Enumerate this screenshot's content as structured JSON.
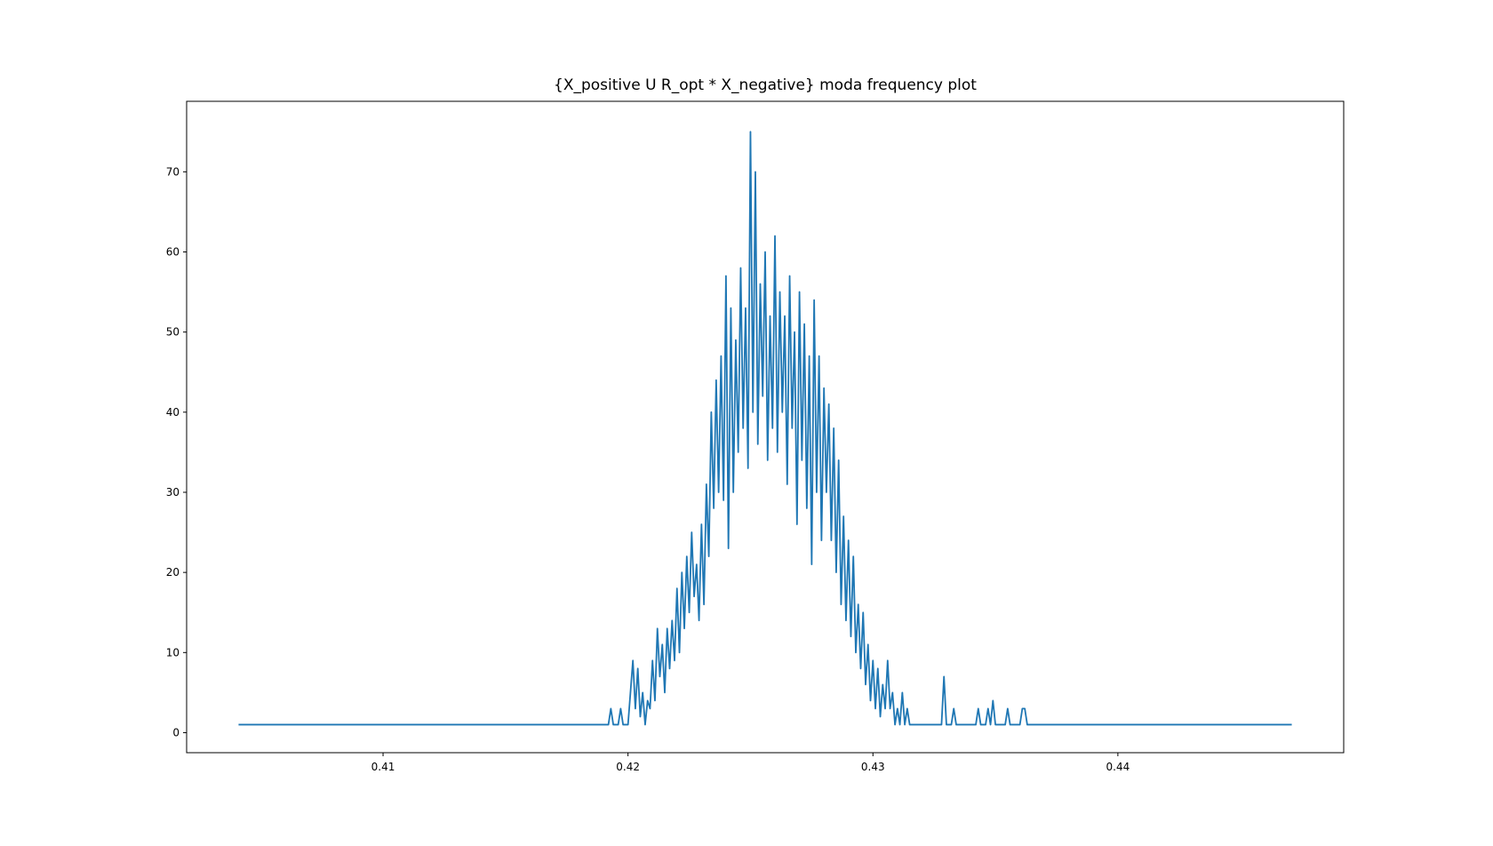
{
  "chart_data": {
    "type": "line",
    "title": "{X_positive U R_opt * X_negative} moda frequency plot",
    "color": "#1f77b4",
    "xlim": [
      0.40198,
      0.44922
    ],
    "ylim": [
      -2.5,
      78.8
    ],
    "xticks": [
      0.41,
      0.42,
      0.43,
      0.44
    ],
    "yticks": [
      0,
      10,
      20,
      30,
      40,
      50,
      60,
      70
    ],
    "x": [
      0.4041,
      0.4192,
      0.4193,
      0.4194,
      0.4196,
      0.4197,
      0.4198,
      0.42,
      0.4201,
      0.4202,
      0.4203,
      0.4204,
      0.4205,
      0.4206,
      0.4207,
      0.4208,
      0.4209,
      0.421,
      0.4211,
      0.4212,
      0.4213,
      0.4214,
      0.4215,
      0.4216,
      0.4217,
      0.4218,
      0.4219,
      0.422,
      0.4221,
      0.4222,
      0.4223,
      0.4224,
      0.4225,
      0.4226,
      0.4227,
      0.4228,
      0.4229,
      0.423,
      0.4231,
      0.4232,
      0.4233,
      0.4234,
      0.4235,
      0.4236,
      0.4237,
      0.4238,
      0.4239,
      0.424,
      0.4241,
      0.4242,
      0.4243,
      0.4244,
      0.4245,
      0.4246,
      0.4247,
      0.4248,
      0.4249,
      0.425,
      0.4251,
      0.4252,
      0.4253,
      0.4254,
      0.4255,
      0.4256,
      0.4257,
      0.4258,
      0.4259,
      0.426,
      0.4261,
      0.4262,
      0.4263,
      0.4264,
      0.4265,
      0.4266,
      0.4267,
      0.4268,
      0.4269,
      0.427,
      0.4271,
      0.4272,
      0.4273,
      0.4274,
      0.4275,
      0.4276,
      0.4277,
      0.4278,
      0.4279,
      0.428,
      0.4281,
      0.4282,
      0.4283,
      0.4284,
      0.4285,
      0.4286,
      0.4287,
      0.4288,
      0.4289,
      0.429,
      0.4291,
      0.4292,
      0.4293,
      0.4294,
      0.4295,
      0.4296,
      0.4297,
      0.4298,
      0.4299,
      0.43,
      0.4301,
      0.4302,
      0.4303,
      0.4304,
      0.4305,
      0.4306,
      0.4307,
      0.4308,
      0.4309,
      0.431,
      0.4311,
      0.4312,
      0.4313,
      0.4314,
      0.4315,
      0.4328,
      0.4329,
      0.433,
      0.4332,
      0.4333,
      0.4334,
      0.4342,
      0.4343,
      0.4344,
      0.4346,
      0.4347,
      0.4348,
      0.4349,
      0.435,
      0.4354,
      0.4355,
      0.4356,
      0.436,
      0.4361,
      0.4362,
      0.4363,
      0.4471
    ],
    "values": [
      1,
      1,
      3,
      1,
      1,
      3,
      1,
      1,
      5,
      9,
      3,
      8,
      2,
      5,
      1,
      4,
      3,
      9,
      4,
      13,
      7,
      11,
      5,
      13,
      8,
      14,
      9,
      18,
      10,
      20,
      13,
      22,
      15,
      25,
      17,
      21,
      14,
      26,
      16,
      31,
      22,
      40,
      28,
      44,
      30,
      47,
      29,
      57,
      23,
      53,
      30,
      49,
      35,
      58,
      38,
      53,
      33,
      75,
      40,
      70,
      36,
      56,
      42,
      60,
      34,
      52,
      38,
      62,
      35,
      55,
      40,
      52,
      31,
      57,
      38,
      50,
      26,
      55,
      34,
      51,
      28,
      47,
      21,
      54,
      30,
      47,
      24,
      43,
      30,
      41,
      24,
      38,
      20,
      34,
      16,
      27,
      14,
      24,
      12,
      22,
      10,
      16,
      8,
      15,
      6,
      11,
      4,
      9,
      3,
      8,
      2,
      6,
      3,
      9,
      3,
      5,
      1,
      3,
      1,
      5,
      1,
      3,
      1,
      1,
      7,
      1,
      1,
      3,
      1,
      1,
      3,
      1,
      1,
      3,
      1,
      4,
      1,
      1,
      3,
      1,
      1,
      3,
      3,
      1,
      1
    ]
  }
}
